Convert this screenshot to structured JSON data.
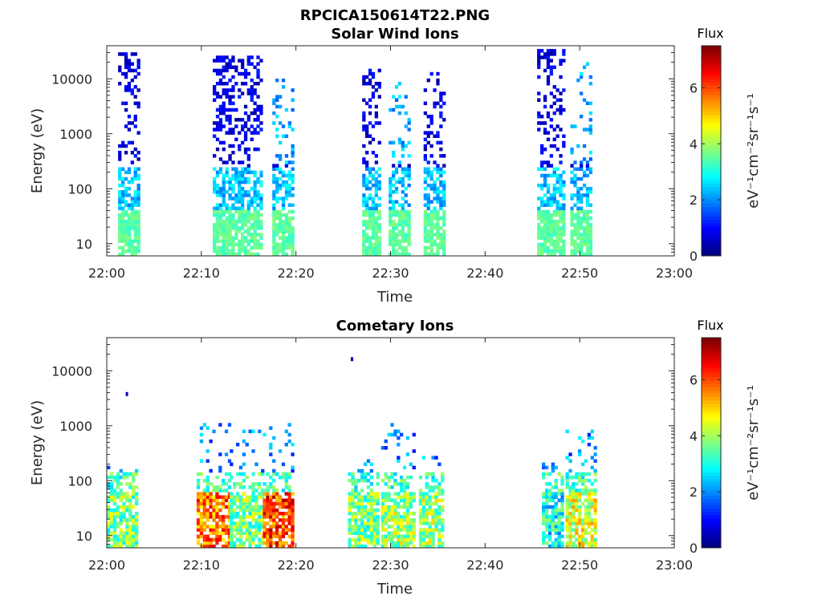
{
  "figure_title": "RPCICA150614T22.PNG",
  "chart_data": [
    {
      "type": "heatmap",
      "title": "Solar Wind Ions",
      "xlabel": "Time",
      "ylabel": "Energy (eV)",
      "x_ticks": [
        "22:00",
        "22:10",
        "22:20",
        "22:30",
        "22:40",
        "22:50",
        "23:00"
      ],
      "x_range_minutes": [
        0,
        60
      ],
      "y_scale": "log",
      "y_ticks": [
        "10",
        "100",
        "1000",
        "10000"
      ],
      "y_range": [
        6,
        40000
      ],
      "colorbar": {
        "title": "Flux",
        "label": "eV⁻¹cm⁻²sr⁻¹s⁻¹",
        "ticks": [
          "0",
          "2",
          "4",
          "6"
        ],
        "range": [
          0,
          7.5
        ],
        "colormap": "jet"
      },
      "bursts": [
        {
          "t0": 1.2,
          "t1": 3.2,
          "emax": 30000,
          "dense_from": 6000
        },
        {
          "t0": 11.2,
          "t1": 16.2,
          "emax": 25000,
          "dense_from": 1000
        },
        {
          "t0": 17.5,
          "t1": 19.8,
          "emax": 10000,
          "dense_from": 99999
        },
        {
          "t0": 27.0,
          "t1": 28.7,
          "emax": 15000,
          "dense_from": 15000
        },
        {
          "t0": 29.8,
          "t1": 32.0,
          "emax": 10000,
          "dense_from": 99999
        },
        {
          "t0": 33.5,
          "t1": 35.5,
          "emax": 14000,
          "dense_from": 14000
        },
        {
          "t0": 45.5,
          "t1": 48.3,
          "emax": 35000,
          "dense_from": 20000
        },
        {
          "t0": 49.0,
          "t1": 51.0,
          "emax": 20000,
          "dense_from": 99999
        }
      ],
      "z_typical": "dark blue (~0-1) at high energy, cyan (~2-3) below 200 eV, green (~3.5) near 10 eV"
    },
    {
      "type": "heatmap",
      "title": "Cometary Ions",
      "xlabel": "Time",
      "ylabel": "Energy (eV)",
      "x_ticks": [
        "22:00",
        "22:10",
        "22:20",
        "22:30",
        "22:40",
        "22:50",
        "23:00"
      ],
      "x_range_minutes": [
        0,
        60
      ],
      "y_scale": "log",
      "y_ticks": [
        "10",
        "100",
        "1000",
        "10000"
      ],
      "y_range": [
        6,
        40000
      ],
      "colorbar": {
        "title": "Flux",
        "label": "eV⁻¹cm⁻²sr⁻¹s⁻¹",
        "ticks": [
          "0",
          "2",
          "4",
          "6"
        ],
        "range": [
          0,
          7.5
        ],
        "colormap": "jet"
      },
      "bursts": [
        {
          "t0": 0.0,
          "t1": 3.2,
          "emax": 200,
          "zpeak": 4.8
        },
        {
          "t0": 9.5,
          "t1": 13.0,
          "emax": 1100,
          "zpeak": 6.8
        },
        {
          "t0": 13.0,
          "t1": 16.5,
          "emax": 800,
          "zpeak": 4.8
        },
        {
          "t0": 16.5,
          "t1": 19.5,
          "emax": 1200,
          "zpeak": 7.2
        },
        {
          "t0": 25.5,
          "t1": 28.5,
          "emax": 300,
          "zpeak": 4.8
        },
        {
          "t0": 29.0,
          "t1": 32.5,
          "emax": 1200,
          "zpeak": 5.0
        },
        {
          "t0": 33.0,
          "t1": 35.5,
          "emax": 500,
          "zpeak": 5.0
        },
        {
          "t0": 46.0,
          "t1": 48.0,
          "emax": 250,
          "zpeak": 4.0
        },
        {
          "t0": 48.5,
          "t1": 51.5,
          "emax": 800,
          "zpeak": 5.5
        }
      ],
      "outliers": [
        {
          "t": 2.0,
          "e": 3700,
          "z": 0.5
        },
        {
          "t": 25.8,
          "e": 16000,
          "z": 0.5
        }
      ],
      "z_typical": "yellow-orange (~4.5-5.5) at 10-60 eV, red peaks (~7) near 22:12 and 22:18"
    }
  ]
}
